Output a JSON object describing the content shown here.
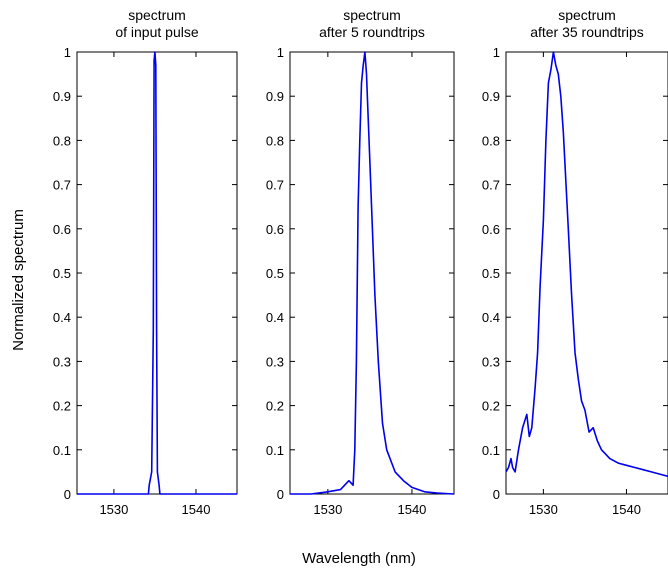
{
  "figure": {
    "ylabel": "Normalized spectrum",
    "xlabel": "Wavelength (nm)"
  },
  "colors": {
    "line": "#0000ee",
    "axes": "#000000",
    "background": "#ffffff"
  },
  "chart_data": [
    {
      "type": "line",
      "title_lines": [
        "spectrum",
        "of input pulse"
      ],
      "xlim": [
        1525.5,
        1545
      ],
      "ylim": [
        0,
        1
      ],
      "xticks": [
        1530,
        1540
      ],
      "yticks": [
        0,
        0.1,
        0.2,
        0.3,
        0.4,
        0.5,
        0.6,
        0.7,
        0.8,
        0.9,
        1
      ],
      "ytick_labels": [
        "0",
        "0.1",
        "0.2",
        "0.3",
        "0.4",
        "0.5",
        "0.6",
        "0.7",
        "0.8",
        "0.9",
        "1"
      ],
      "grid": false,
      "series": [
        {
          "x": [
            1525.5,
            1534.2,
            1534.3,
            1534.6,
            1534.8,
            1534.9,
            1535.0,
            1535.1,
            1535.2,
            1535.3,
            1535.5,
            1535.6,
            1545
          ],
          "y": [
            0,
            0,
            0.02,
            0.05,
            0.37,
            0.98,
            1.0,
            0.97,
            0.37,
            0.05,
            0.02,
            0,
            0
          ]
        }
      ]
    },
    {
      "type": "line",
      "title_lines": [
        "spectrum",
        "after 5 roundtrips"
      ],
      "xlim": [
        1525.5,
        1545
      ],
      "ylim": [
        0,
        1
      ],
      "xticks": [
        1530,
        1540
      ],
      "yticks": [
        0,
        0.1,
        0.2,
        0.3,
        0.4,
        0.5,
        0.6,
        0.7,
        0.8,
        0.9,
        1
      ],
      "ytick_labels": [
        "0",
        "0.1",
        "0.2",
        "0.3",
        "0.4",
        "0.5",
        "0.6",
        "0.7",
        "0.8",
        "0.9",
        "1"
      ],
      "grid": false,
      "series": [
        {
          "x": [
            1525.5,
            1528.0,
            1530.0,
            1531.5,
            1532.5,
            1533.0,
            1533.2,
            1533.4,
            1533.6,
            1533.8,
            1534.0,
            1534.2,
            1534.4,
            1534.6,
            1534.8,
            1535.0,
            1535.3,
            1535.6,
            1536.0,
            1536.5,
            1537.0,
            1538.0,
            1539.0,
            1540.0,
            1541.5,
            1543.0,
            1545.0
          ],
          "y": [
            0,
            0,
            0.005,
            0.01,
            0.03,
            0.02,
            0.1,
            0.3,
            0.65,
            0.8,
            0.93,
            0.97,
            1.0,
            0.95,
            0.85,
            0.75,
            0.6,
            0.45,
            0.3,
            0.16,
            0.1,
            0.05,
            0.03,
            0.015,
            0.005,
            0.002,
            0
          ]
        }
      ]
    },
    {
      "type": "line",
      "title_lines": [
        "spectrum",
        "after 35 roundtrips"
      ],
      "xlim": [
        1525.5,
        1545
      ],
      "ylim": [
        0,
        1
      ],
      "xticks": [
        1530,
        1540
      ],
      "yticks": [
        0,
        0.1,
        0.2,
        0.3,
        0.4,
        0.5,
        0.6,
        0.7,
        0.8,
        0.9,
        1
      ],
      "ytick_labels": [
        "0",
        "0.1",
        "0.2",
        "0.3",
        "0.4",
        "0.5",
        "0.6",
        "0.7",
        "0.8",
        "0.9",
        "1"
      ],
      "grid": false,
      "series": [
        {
          "x": [
            1525.5,
            1525.8,
            1526.1,
            1526.3,
            1526.6,
            1527.0,
            1527.5,
            1528.0,
            1528.3,
            1528.6,
            1529.0,
            1529.3,
            1529.6,
            1530.0,
            1530.3,
            1530.6,
            1530.9,
            1531.2,
            1531.5,
            1531.8,
            1532.1,
            1532.4,
            1532.7,
            1533.0,
            1533.4,
            1533.8,
            1534.2,
            1534.6,
            1535.0,
            1535.5,
            1536.0,
            1536.5,
            1537.0,
            1537.5,
            1538.0,
            1539.0,
            1540.0,
            1541.0,
            1542.0,
            1543.0,
            1544.0,
            1545.0
          ],
          "y": [
            0.05,
            0.06,
            0.08,
            0.06,
            0.05,
            0.1,
            0.15,
            0.18,
            0.13,
            0.15,
            0.24,
            0.32,
            0.47,
            0.62,
            0.8,
            0.93,
            0.96,
            1.0,
            0.97,
            0.95,
            0.9,
            0.82,
            0.71,
            0.6,
            0.45,
            0.32,
            0.26,
            0.21,
            0.19,
            0.14,
            0.15,
            0.12,
            0.1,
            0.09,
            0.08,
            0.07,
            0.065,
            0.06,
            0.055,
            0.05,
            0.045,
            0.04
          ]
        }
      ]
    }
  ]
}
